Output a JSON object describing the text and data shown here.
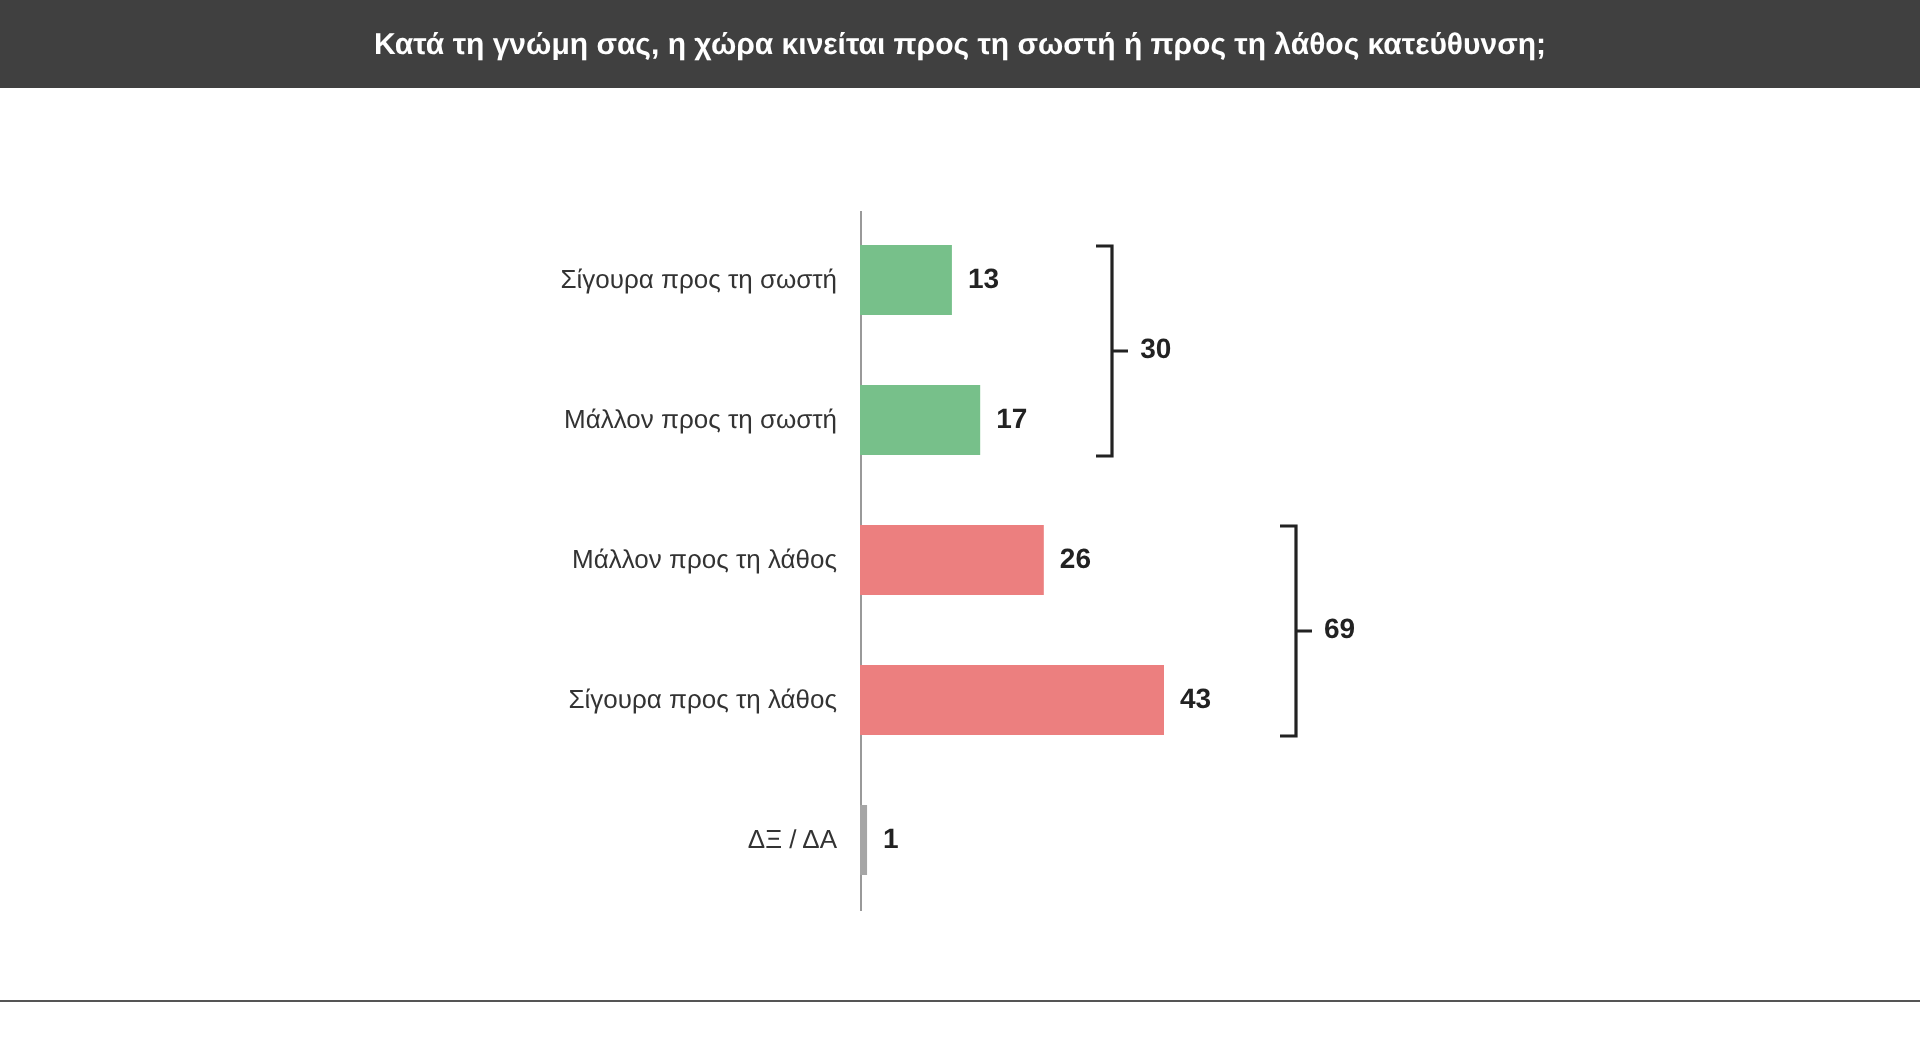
{
  "chart_data": {
    "type": "bar",
    "orientation": "horizontal",
    "title": "Κατά τη γνώμη σας, η χώρα κινείται προς τη σωστή ή προς τη λάθος κατεύθυνση;",
    "categories": [
      "Σίγουρα προς τη σωστή",
      "Μάλλον προς τη σωστή",
      "Μάλλον προς τη λάθος",
      "Σίγουρα προς τη λάθος",
      "ΔΞ / ΔΑ"
    ],
    "values": [
      13,
      17,
      26,
      43,
      1
    ],
    "colors": [
      "#77c08a",
      "#77c08a",
      "#ec7f7f",
      "#ec7f7f",
      "#a6a6a6"
    ],
    "data_labels": true,
    "annotations": [
      "30",
      "69"
    ]
  }
}
